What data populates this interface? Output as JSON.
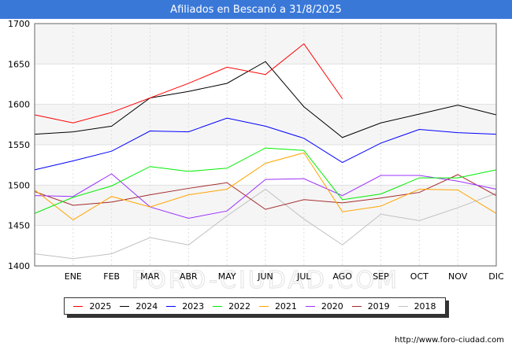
{
  "header": {
    "title": "Afiliados en Bescanó a 31/8/2025"
  },
  "watermark": "FORO-CIUDAD.COM",
  "footer": {
    "url": "http://www.foro-ciudad.com"
  },
  "chart_data": {
    "type": "line",
    "title": "Afiliados en Bescanó a 31/8/2025",
    "categories": [
      "",
      "ENE",
      "FEB",
      "MAR",
      "ABR",
      "MAY",
      "JUN",
      "JUL",
      "AGO",
      "SEP",
      "OCT",
      "NOV",
      "DIC"
    ],
    "ylim": [
      1400,
      1700
    ],
    "yticks": [
      1400,
      1450,
      1500,
      1550,
      1600,
      1650,
      1700
    ],
    "grid": true,
    "legend_position": "bottom",
    "series": [
      {
        "name": "2025",
        "color": "#ff0000",
        "values": [
          1587,
          1577,
          1590,
          1608,
          1626,
          1646,
          1637,
          1675,
          1607,
          null,
          null,
          null,
          null
        ]
      },
      {
        "name": "2024",
        "color": "#000000",
        "values": [
          1563,
          1566,
          1573,
          1608,
          1616,
          1626,
          1653,
          1597,
          1559,
          1577,
          1588,
          1599,
          1587
        ]
      },
      {
        "name": "2023",
        "color": "#0000ff",
        "values": [
          1519,
          1530,
          1542,
          1567,
          1566,
          1583,
          1573,
          1558,
          1528,
          1552,
          1569,
          1565,
          1563
        ]
      },
      {
        "name": "2022",
        "color": "#00ee00",
        "values": [
          1465,
          1485,
          1499,
          1523,
          1517,
          1521,
          1546,
          1543,
          1482,
          1489,
          1509,
          1509,
          1519
        ]
      },
      {
        "name": "2021",
        "color": "#ffa500",
        "values": [
          1494,
          1457,
          1486,
          1473,
          1488,
          1495,
          1527,
          1540,
          1467,
          1474,
          1495,
          1494,
          1465
        ]
      },
      {
        "name": "2020",
        "color": "#9b30ff",
        "values": [
          1487,
          1486,
          1514,
          1473,
          1459,
          1468,
          1507,
          1508,
          1487,
          1512,
          1512,
          1505,
          1495
        ]
      },
      {
        "name": "2019",
        "color": "#a52a2a",
        "values": [
          1492,
          1475,
          1479,
          1488,
          1496,
          1503,
          1470,
          1482,
          1478,
          1484,
          1491,
          1513,
          1487
        ]
      },
      {
        "name": "2018",
        "color": "#c0c0c0",
        "values": [
          1415,
          1409,
          1415,
          1435,
          1426,
          1462,
          1495,
          1458,
          1426,
          1464,
          1456,
          1472,
          1490
        ]
      }
    ]
  }
}
